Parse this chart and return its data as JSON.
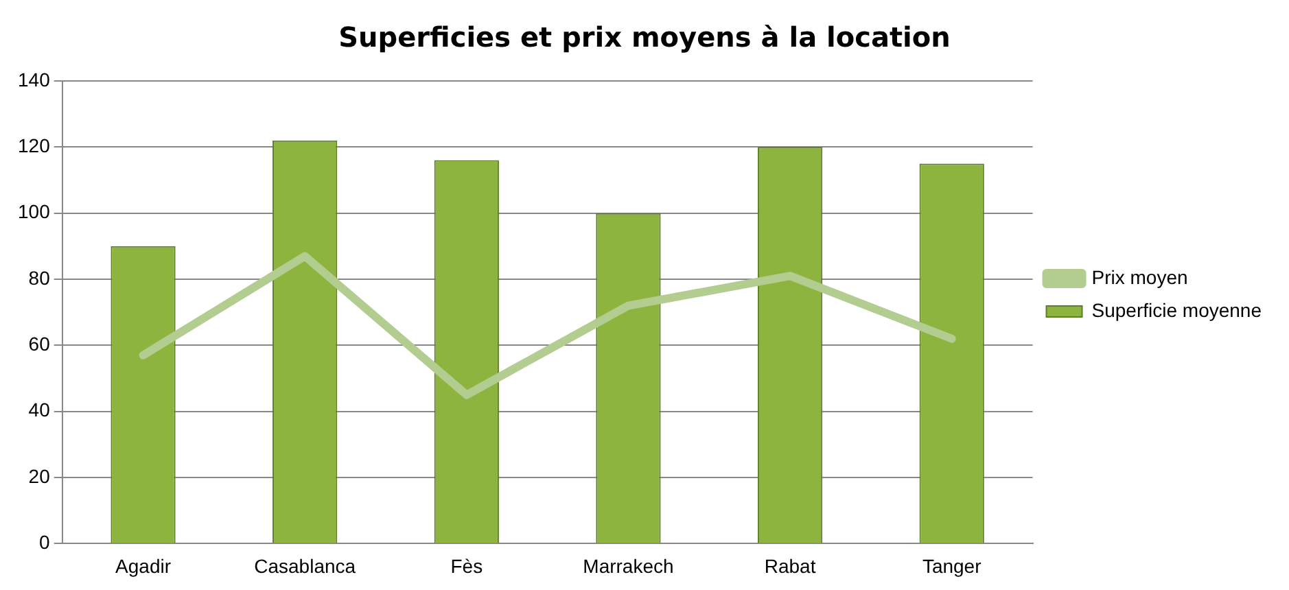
{
  "chart_data": {
    "type": "bar",
    "title": "Superficies et prix moyens à la location",
    "categories": [
      "Agadir",
      "Casablanca",
      "Fès",
      "Marrakech",
      "Rabat",
      "Tanger"
    ],
    "series": [
      {
        "name": "Superficie moyenne",
        "color": "#8db43e",
        "values": [
          90,
          122,
          116,
          100,
          120,
          115
        ]
      },
      {
        "name": "Prix moyen",
        "type": "line",
        "color": "#b3cc8f",
        "values": [
          57,
          87,
          45,
          72,
          81,
          62
        ]
      }
    ],
    "ylim": [
      0,
      140
    ],
    "yticks": [
      0,
      20,
      40,
      60,
      80,
      100,
      120,
      140
    ],
    "grid": "y",
    "legend": "right",
    "marker": "none"
  }
}
